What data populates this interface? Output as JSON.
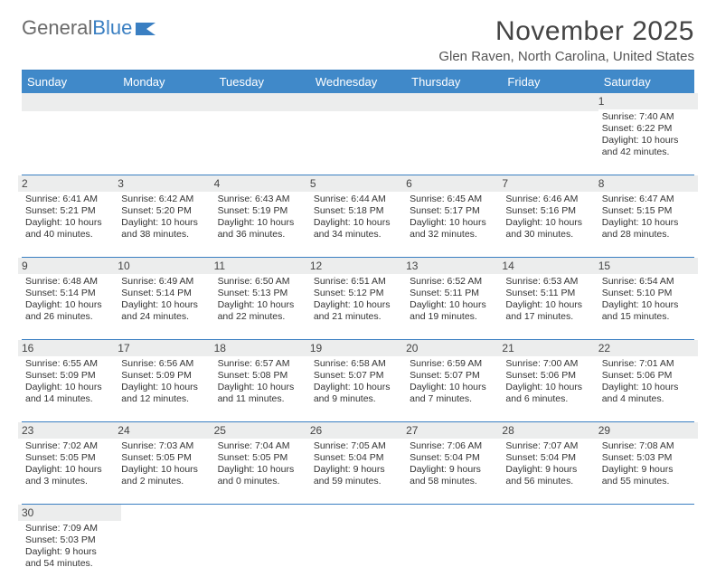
{
  "logo": {
    "general": "General",
    "blue": "Blue"
  },
  "title": "November 2025",
  "subtitle": "Glen Raven, North Carolina, United States",
  "colors": {
    "header_bg": "#4089c9",
    "rule": "#3a7fc2",
    "daynum_bg": "#eceded",
    "text": "#333333",
    "logo_gray": "#6b6b6b",
    "logo_blue": "#3a7fc2"
  },
  "columns": [
    "Sunday",
    "Monday",
    "Tuesday",
    "Wednesday",
    "Thursday",
    "Friday",
    "Saturday"
  ],
  "weeks": [
    [
      null,
      null,
      null,
      null,
      null,
      null,
      {
        "n": "1",
        "sunrise": "7:40 AM",
        "sunset": "6:22 PM",
        "dl1": "10 hours",
        "dl2": "and 42 minutes."
      }
    ],
    [
      {
        "n": "2",
        "sunrise": "6:41 AM",
        "sunset": "5:21 PM",
        "dl1": "10 hours",
        "dl2": "and 40 minutes."
      },
      {
        "n": "3",
        "sunrise": "6:42 AM",
        "sunset": "5:20 PM",
        "dl1": "10 hours",
        "dl2": "and 38 minutes."
      },
      {
        "n": "4",
        "sunrise": "6:43 AM",
        "sunset": "5:19 PM",
        "dl1": "10 hours",
        "dl2": "and 36 minutes."
      },
      {
        "n": "5",
        "sunrise": "6:44 AM",
        "sunset": "5:18 PM",
        "dl1": "10 hours",
        "dl2": "and 34 minutes."
      },
      {
        "n": "6",
        "sunrise": "6:45 AM",
        "sunset": "5:17 PM",
        "dl1": "10 hours",
        "dl2": "and 32 minutes."
      },
      {
        "n": "7",
        "sunrise": "6:46 AM",
        "sunset": "5:16 PM",
        "dl1": "10 hours",
        "dl2": "and 30 minutes."
      },
      {
        "n": "8",
        "sunrise": "6:47 AM",
        "sunset": "5:15 PM",
        "dl1": "10 hours",
        "dl2": "and 28 minutes."
      }
    ],
    [
      {
        "n": "9",
        "sunrise": "6:48 AM",
        "sunset": "5:14 PM",
        "dl1": "10 hours",
        "dl2": "and 26 minutes."
      },
      {
        "n": "10",
        "sunrise": "6:49 AM",
        "sunset": "5:14 PM",
        "dl1": "10 hours",
        "dl2": "and 24 minutes."
      },
      {
        "n": "11",
        "sunrise": "6:50 AM",
        "sunset": "5:13 PM",
        "dl1": "10 hours",
        "dl2": "and 22 minutes."
      },
      {
        "n": "12",
        "sunrise": "6:51 AM",
        "sunset": "5:12 PM",
        "dl1": "10 hours",
        "dl2": "and 21 minutes."
      },
      {
        "n": "13",
        "sunrise": "6:52 AM",
        "sunset": "5:11 PM",
        "dl1": "10 hours",
        "dl2": "and 19 minutes."
      },
      {
        "n": "14",
        "sunrise": "6:53 AM",
        "sunset": "5:11 PM",
        "dl1": "10 hours",
        "dl2": "and 17 minutes."
      },
      {
        "n": "15",
        "sunrise": "6:54 AM",
        "sunset": "5:10 PM",
        "dl1": "10 hours",
        "dl2": "and 15 minutes."
      }
    ],
    [
      {
        "n": "16",
        "sunrise": "6:55 AM",
        "sunset": "5:09 PM",
        "dl1": "10 hours",
        "dl2": "and 14 minutes."
      },
      {
        "n": "17",
        "sunrise": "6:56 AM",
        "sunset": "5:09 PM",
        "dl1": "10 hours",
        "dl2": "and 12 minutes."
      },
      {
        "n": "18",
        "sunrise": "6:57 AM",
        "sunset": "5:08 PM",
        "dl1": "10 hours",
        "dl2": "and 11 minutes."
      },
      {
        "n": "19",
        "sunrise": "6:58 AM",
        "sunset": "5:07 PM",
        "dl1": "10 hours",
        "dl2": "and 9 minutes."
      },
      {
        "n": "20",
        "sunrise": "6:59 AM",
        "sunset": "5:07 PM",
        "dl1": "10 hours",
        "dl2": "and 7 minutes."
      },
      {
        "n": "21",
        "sunrise": "7:00 AM",
        "sunset": "5:06 PM",
        "dl1": "10 hours",
        "dl2": "and 6 minutes."
      },
      {
        "n": "22",
        "sunrise": "7:01 AM",
        "sunset": "5:06 PM",
        "dl1": "10 hours",
        "dl2": "and 4 minutes."
      }
    ],
    [
      {
        "n": "23",
        "sunrise": "7:02 AM",
        "sunset": "5:05 PM",
        "dl1": "10 hours",
        "dl2": "and 3 minutes."
      },
      {
        "n": "24",
        "sunrise": "7:03 AM",
        "sunset": "5:05 PM",
        "dl1": "10 hours",
        "dl2": "and 2 minutes."
      },
      {
        "n": "25",
        "sunrise": "7:04 AM",
        "sunset": "5:05 PM",
        "dl1": "10 hours",
        "dl2": "and 0 minutes."
      },
      {
        "n": "26",
        "sunrise": "7:05 AM",
        "sunset": "5:04 PM",
        "dl1": "9 hours",
        "dl2": "and 59 minutes."
      },
      {
        "n": "27",
        "sunrise": "7:06 AM",
        "sunset": "5:04 PM",
        "dl1": "9 hours",
        "dl2": "and 58 minutes."
      },
      {
        "n": "28",
        "sunrise": "7:07 AM",
        "sunset": "5:04 PM",
        "dl1": "9 hours",
        "dl2": "and 56 minutes."
      },
      {
        "n": "29",
        "sunrise": "7:08 AM",
        "sunset": "5:03 PM",
        "dl1": "9 hours",
        "dl2": "and 55 minutes."
      }
    ],
    [
      {
        "n": "30",
        "sunrise": "7:09 AM",
        "sunset": "5:03 PM",
        "dl1": "9 hours",
        "dl2": "and 54 minutes."
      },
      null,
      null,
      null,
      null,
      null,
      null
    ]
  ],
  "labels": {
    "sunrise": "Sunrise: ",
    "sunset": "Sunset: ",
    "daylight": "Daylight: "
  }
}
